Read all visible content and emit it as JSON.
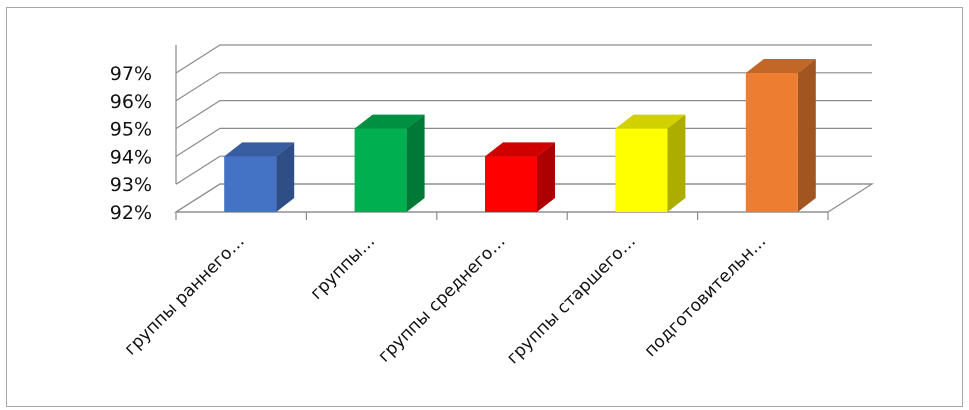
{
  "chart_data": {
    "type": "bar",
    "title": "",
    "xlabel": "",
    "ylabel": "",
    "ylim": [
      92,
      97
    ],
    "yticks": [
      "92%",
      "93%",
      "94%",
      "95%",
      "96%",
      "97%"
    ],
    "grid": true,
    "legend": "none",
    "categories": [
      "группы  раннего…",
      "группы…",
      "группы среднего…",
      "группы старшего…",
      "подготовительн…"
    ],
    "values": [
      94,
      95,
      94,
      95,
      97
    ],
    "colors": [
      "#4472C4",
      "#00B050",
      "#FF0000",
      "#FFFF00",
      "#ED7D31"
    ]
  }
}
